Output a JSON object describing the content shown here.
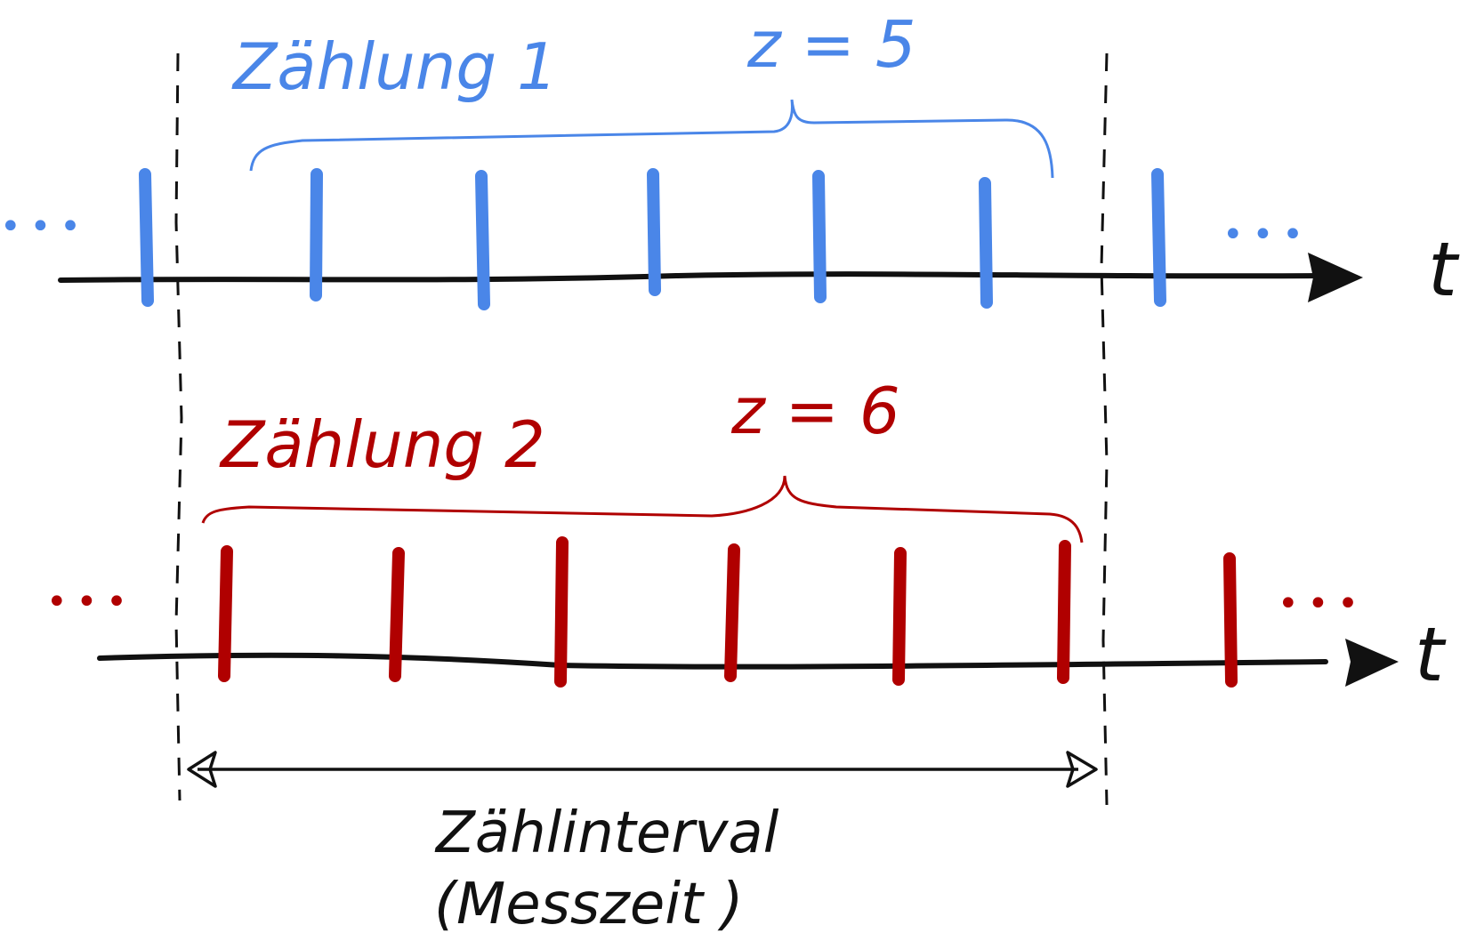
{
  "colors": {
    "blue": "#4a86e8",
    "red": "#b00000",
    "black": "#111111"
  },
  "row1": {
    "label": "Zählung 1",
    "count_label": "z = 5",
    "axis_label": "t",
    "ellipsis_left": "•••",
    "ellipsis_right": "•••"
  },
  "row2": {
    "label": "Zählung 2",
    "count_label": "z = 6",
    "axis_label": "t",
    "ellipsis_left": "•••",
    "ellipsis_right": "•••"
  },
  "interval": {
    "line1": "Zählinterval",
    "line2": "(Messzeit )"
  }
}
